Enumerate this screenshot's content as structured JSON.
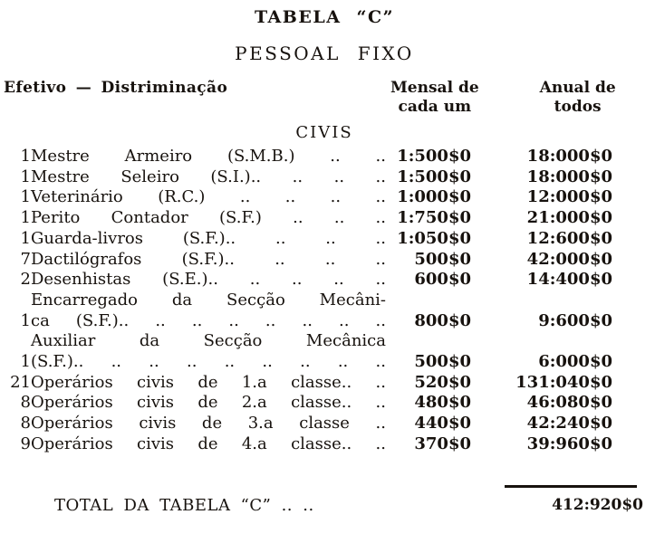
{
  "document": {
    "title": "TABELA “C”",
    "subtitle": "PESSOAL FIXO",
    "header": {
      "efetivo": "Efetivo — Distriminação",
      "mensal": [
        "Mensal de",
        "cada um"
      ],
      "anual": [
        "Anual de",
        "todos"
      ]
    },
    "section_heading": "CIVIS",
    "rows": [
      {
        "qty": "1",
        "lines": [
          "Mestre Armeiro (S.M.B.) .. .."
        ],
        "mensal": "1:500$0",
        "anual": "18:000$0"
      },
      {
        "qty": "1",
        "lines": [
          "Mestre Seleiro (S.I.).. .. .. .."
        ],
        "mensal": "1:500$0",
        "anual": "18:000$0"
      },
      {
        "qty": "1",
        "lines": [
          "Veterinário (R.C.) .. .. .. .."
        ],
        "mensal": "1:000$0",
        "anual": "12:000$0"
      },
      {
        "qty": "1",
        "lines": [
          "Perito Contador (S.F.) .. .. .."
        ],
        "mensal": "1:750$0",
        "anual": "21:000$0"
      },
      {
        "qty": "1",
        "lines": [
          "Guarda-livros (S.F.).. .. .. .."
        ],
        "mensal": "1:050$0",
        "anual": "12:600$0"
      },
      {
        "qty": "7",
        "lines": [
          "Dactilógrafos (S.F.).. .. .. .."
        ],
        "mensal": "500$0",
        "anual": "42:000$0"
      },
      {
        "qty": "2",
        "lines": [
          "Desenhistas (S.E.).. .. .. .. .."
        ],
        "mensal": "600$0",
        "anual": "14:400$0"
      },
      {
        "qty": "1",
        "lines": [
          "Encarregado da Secção Mecâni-",
          "ca (S.F.).. .. .. .. .. .. .. .."
        ],
        "mensal": "800$0",
        "anual": "9:600$0"
      },
      {
        "qty": "1",
        "lines": [
          "Auxiliar da Secção Mecânica",
          "(S.F.).. .. .. .. .. .. .. .. .."
        ],
        "mensal": "500$0",
        "anual": "6:000$0"
      },
      {
        "qty": "21",
        "lines": [
          "Operários civis de 1.a classe.. .."
        ],
        "mensal": "520$0",
        "anual": "131:040$0"
      },
      {
        "qty": "8",
        "lines": [
          "Operários civis de 2.a classe.. .."
        ],
        "mensal": "480$0",
        "anual": "46:080$0"
      },
      {
        "qty": "8",
        "lines": [
          "Operários civis de 3.a classe .."
        ],
        "mensal": "440$0",
        "anual": "42:240$0"
      },
      {
        "qty": "9",
        "lines": [
          "Operários civis de 4.a classe.. .."
        ],
        "mensal": "370$0",
        "anual": "39:960$0"
      }
    ],
    "total": {
      "label": "TOTAL DA TABELA “C” .. ..",
      "value": "412:920$0"
    },
    "colors": {
      "ink": "#17120e",
      "paper": "#ffffff"
    }
  }
}
